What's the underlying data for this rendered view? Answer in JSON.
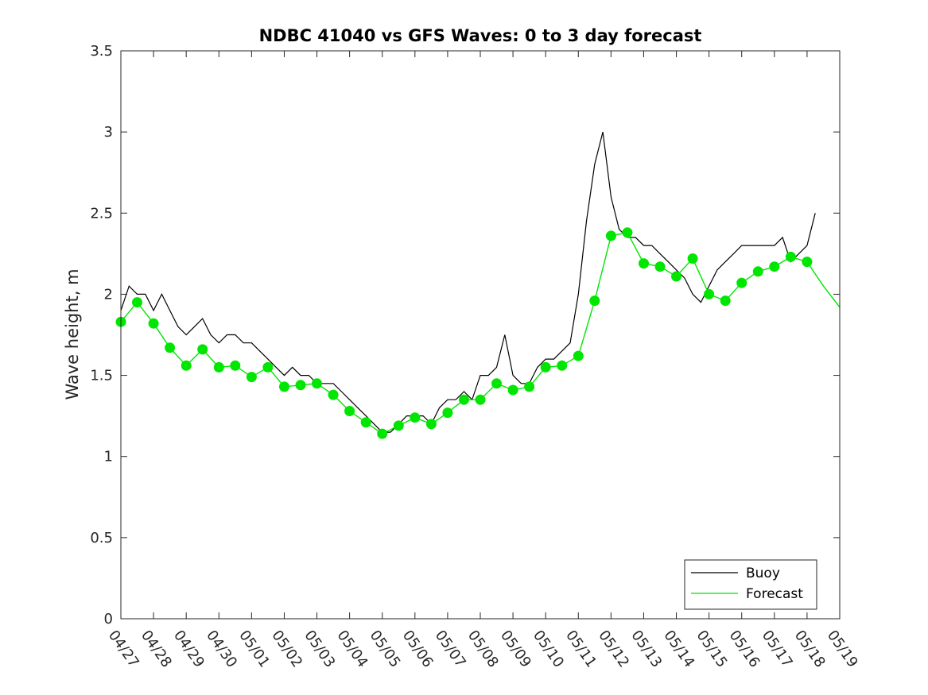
{
  "chart_data": {
    "type": "line",
    "title": "NDBC 41040 vs GFS Waves: 0 to 3 day forecast",
    "xlabel": "",
    "ylabel": "Wave height, m",
    "xlim": [
      "04/27",
      "05/19"
    ],
    "ylim": [
      0,
      3.5
    ],
    "x_tick_labels": [
      "04/27",
      "04/28",
      "04/29",
      "04/30",
      "05/01",
      "05/02",
      "05/03",
      "05/04",
      "05/05",
      "05/06",
      "05/07",
      "05/08",
      "05/09",
      "05/10",
      "05/11",
      "05/12",
      "05/13",
      "05/14",
      "05/15",
      "05/16",
      "05/17",
      "05/18",
      "05/19"
    ],
    "y_tick_labels": [
      "0",
      "0.5",
      "1",
      "1.5",
      "2",
      "2.5",
      "3",
      "3.5"
    ],
    "y_ticks": [
      0,
      0.5,
      1,
      1.5,
      2,
      2.5,
      3,
      3.5
    ],
    "grid": false,
    "legend_position": "bottom-right",
    "series": [
      {
        "name": "Buoy",
        "color": "#000000",
        "x_days": [
          0,
          0.25,
          0.5,
          0.75,
          1,
          1.25,
          1.5,
          1.75,
          2,
          2.25,
          2.5,
          2.75,
          3,
          3.25,
          3.5,
          3.75,
          4,
          4.25,
          4.5,
          4.75,
          5,
          5.25,
          5.5,
          5.75,
          6,
          6.25,
          6.5,
          6.75,
          7,
          7.25,
          7.5,
          7.75,
          8,
          8.25,
          8.5,
          8.75,
          9,
          9.25,
          9.5,
          9.75,
          10,
          10.25,
          10.5,
          10.75,
          11,
          11.25,
          11.5,
          11.75,
          12,
          12.25,
          12.5,
          12.75,
          13,
          13.25,
          13.5,
          13.75,
          14,
          14.25,
          14.5,
          14.75,
          15,
          15.25,
          15.5,
          15.75,
          16,
          16.25,
          16.5,
          16.75,
          17,
          17.25,
          17.5,
          17.75,
          18,
          18.25,
          18.5,
          18.75,
          19,
          19.25,
          19.5,
          19.75,
          20,
          20.25,
          20.5,
          20.75,
          21,
          21.25
        ],
        "y": [
          1.9,
          2.05,
          2.0,
          2.0,
          1.9,
          2.0,
          1.9,
          1.8,
          1.75,
          1.8,
          1.85,
          1.75,
          1.7,
          1.75,
          1.75,
          1.7,
          1.7,
          1.65,
          1.6,
          1.55,
          1.5,
          1.55,
          1.5,
          1.5,
          1.45,
          1.45,
          1.45,
          1.4,
          1.35,
          1.3,
          1.25,
          1.2,
          1.15,
          1.15,
          1.2,
          1.25,
          1.25,
          1.25,
          1.2,
          1.3,
          1.35,
          1.35,
          1.4,
          1.35,
          1.5,
          1.5,
          1.55,
          1.75,
          1.5,
          1.45,
          1.45,
          1.55,
          1.6,
          1.6,
          1.65,
          1.7,
          2.0,
          2.45,
          2.8,
          3.0,
          2.6,
          2.4,
          2.35,
          2.35,
          2.3,
          2.3,
          2.25,
          2.2,
          2.15,
          2.1,
          2.0,
          1.95,
          2.05,
          2.15,
          2.2,
          2.25,
          2.3,
          2.3,
          2.3,
          2.3,
          2.3,
          2.35,
          2.2,
          2.25,
          2.3,
          2.5
        ]
      },
      {
        "name": "Forecast",
        "color": "#00e600",
        "x_days": [
          0,
          0.5,
          1,
          1.5,
          2,
          2.5,
          3,
          3.5,
          4,
          4.5,
          5,
          5.5,
          6,
          6.5,
          7,
          7.5,
          8,
          8.5,
          9,
          9.5,
          10,
          10.5,
          11,
          11.5,
          12,
          12.5,
          13,
          13.5,
          14,
          14.5,
          15,
          15.5,
          16,
          16.5,
          17,
          17.5,
          18,
          18.5,
          19,
          19.5,
          20,
          20.5,
          21,
          21.5,
          22
        ],
        "y": [
          1.83,
          1.95,
          1.82,
          1.67,
          1.56,
          1.66,
          1.55,
          1.56,
          1.49,
          1.55,
          1.43,
          1.44,
          1.45,
          1.38,
          1.28,
          1.21,
          1.14,
          1.19,
          1.24,
          1.2,
          1.27,
          1.35,
          1.35,
          1.45,
          1.41,
          1.43,
          1.55,
          1.56,
          1.62,
          1.96,
          2.36,
          2.38,
          2.19,
          2.17,
          2.11,
          2.22,
          2.0,
          1.96,
          2.07,
          2.14,
          2.17,
          2.23,
          2.2,
          2.05,
          1.92
        ]
      }
    ]
  }
}
